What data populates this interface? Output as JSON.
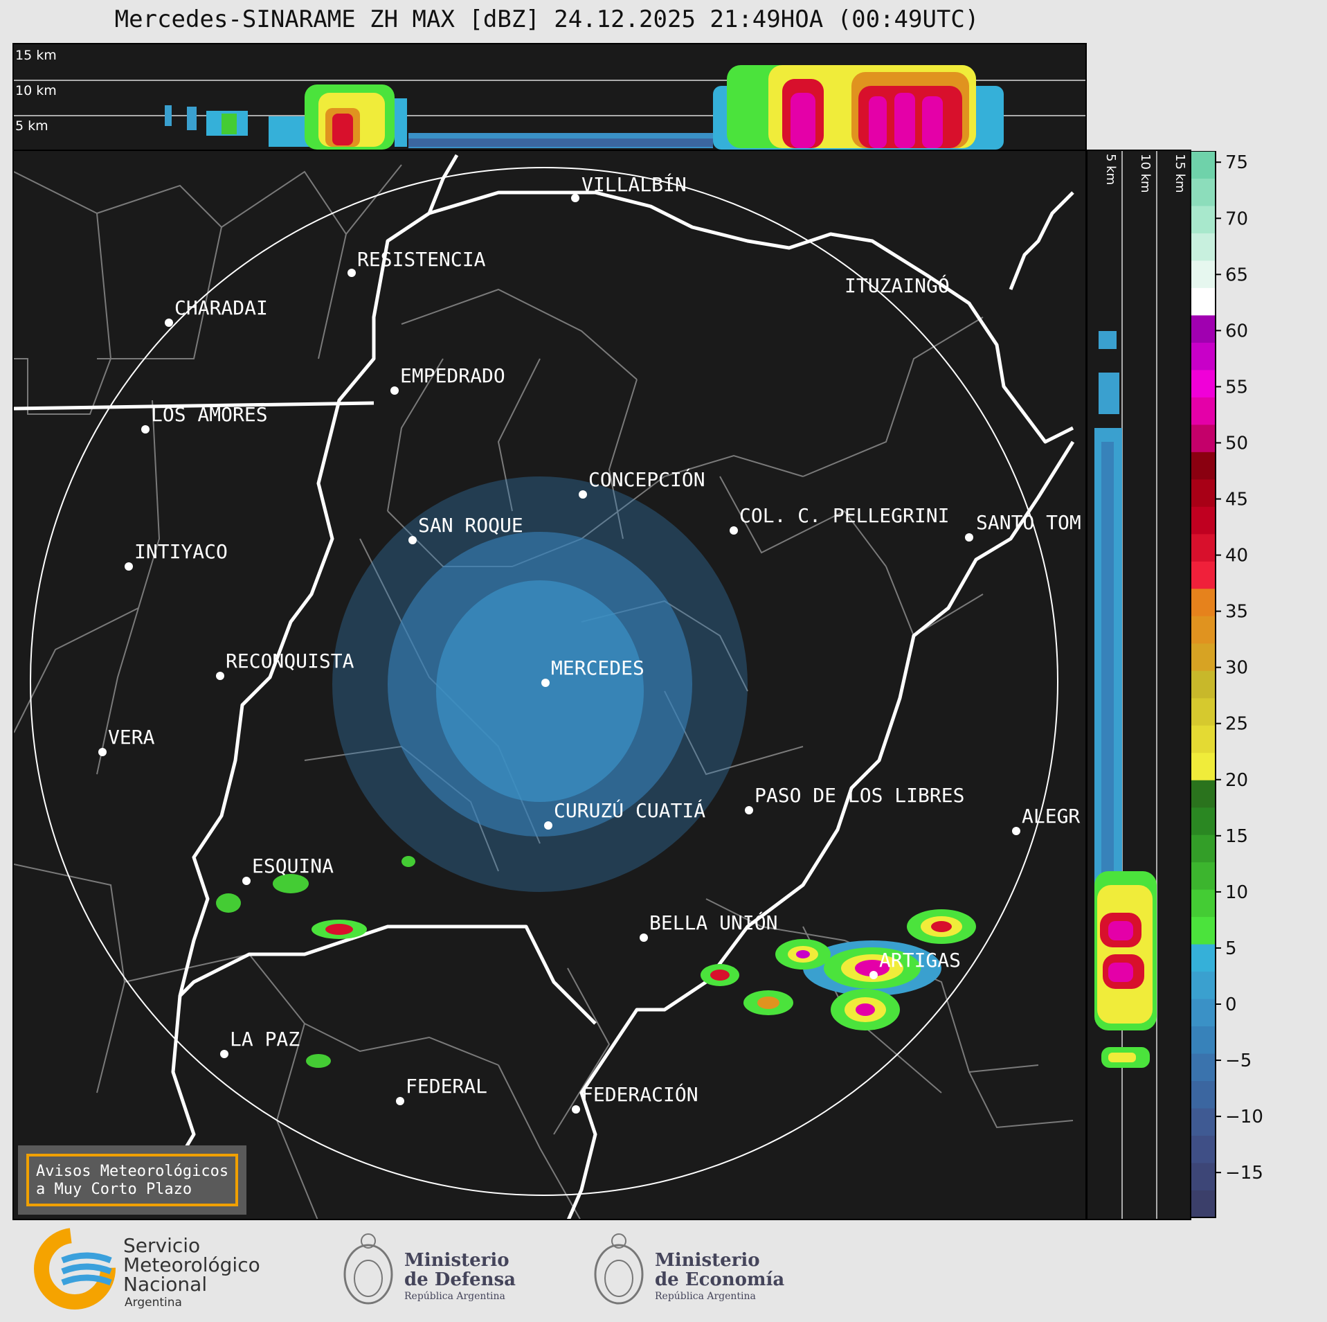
{
  "title": "Mercedes-SINARAME ZH MAX [dBZ] 24.12.2025 21:49HOA (00:49UTC)",
  "cross_section_top": {
    "height_labels": [
      "15 km",
      "10 km",
      "5 km"
    ]
  },
  "cross_section_right": {
    "height_labels": [
      "5 km",
      "10 km",
      "15 km"
    ]
  },
  "colorbar": {
    "ticks": [
      "75",
      "70",
      "65",
      "60",
      "55",
      "50",
      "45",
      "40",
      "35",
      "30",
      "25",
      "20",
      "15",
      "10",
      "5",
      "0",
      "−5",
      "−10",
      "−15"
    ],
    "colors": [
      "#3b3f6a",
      "#3d4677",
      "#3f4f86",
      "#3f5a93",
      "#3b66a0",
      "#3a73ad",
      "#3782ba",
      "#3a91c6",
      "#3aa0cf",
      "#35b0d9",
      "#4be33c",
      "#44cc34",
      "#3cb52e",
      "#339e28",
      "#2a8722",
      "#2a731d",
      "#f0ec3a",
      "#e4da33",
      "#d6c92e",
      "#c8b82a",
      "#d7a323",
      "#e0931f",
      "#e6821c",
      "#f0203a",
      "#d8102c",
      "#c00020",
      "#a80016",
      "#8a0010",
      "#c4006a",
      "#e400a8",
      "#f000d8",
      "#c800c8",
      "#a000b0",
      "#ffffff",
      "#e6f7ef",
      "#c8f0de",
      "#a8e8cc",
      "#8cddbb",
      "#6fd2aa"
    ],
    "range": [
      -19,
      76
    ]
  },
  "map": {
    "range_ring_label": "",
    "cities": [
      {
        "name": "VILLALBÍN"
      },
      {
        "name": "RESISTENCIA"
      },
      {
        "name": "CHARADAI"
      },
      {
        "name": "ITUZAINGÓ"
      },
      {
        "name": "EMPEDRADO"
      },
      {
        "name": "LOS AMORES"
      },
      {
        "name": "CONCEPCIÓN"
      },
      {
        "name": "SAN ROQUE"
      },
      {
        "name": "COL. C. PELLEGRINI"
      },
      {
        "name": "SANTO TOM"
      },
      {
        "name": "INTIYACO"
      },
      {
        "name": "MERCEDES"
      },
      {
        "name": "RECONQUISTA"
      },
      {
        "name": "VERA"
      },
      {
        "name": "CURUZÚ CUATIÁ"
      },
      {
        "name": "PASO DE LOS LIBRES"
      },
      {
        "name": "ALEGR"
      },
      {
        "name": "ESQUINA"
      },
      {
        "name": "BELLA UNIÓN"
      },
      {
        "name": "ARTIGAS"
      },
      {
        "name": "LA PAZ"
      },
      {
        "name": "FEDERAL"
      },
      {
        "name": "FEDERACIÓN"
      }
    ]
  },
  "warning_box": {
    "line1": "Avisos Meteorológicos",
    "line2": "a Muy Corto Plazo"
  },
  "logos": {
    "smn": {
      "line1": "Servicio",
      "line2": "Meteorológico",
      "line3": "Nacional",
      "line4": "Argentina"
    },
    "defensa": {
      "line1": "Ministerio",
      "line2": "de Defensa",
      "line3": "República Argentina"
    },
    "economia": {
      "line1": "Ministerio",
      "line2": "de Economía",
      "line3": "República Argentina"
    }
  }
}
